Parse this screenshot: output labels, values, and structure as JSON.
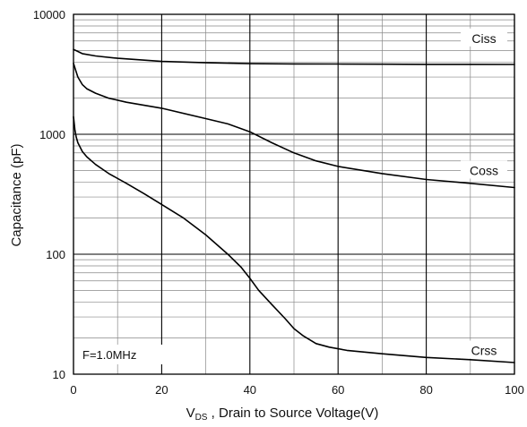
{
  "chart_data": {
    "type": "line",
    "title": "",
    "xlabel_main": "V",
    "xlabel_sub": "DS",
    "xlabel_rest": " , Drain to Source Voltage(V)",
    "ylabel": "Capacitance (pF)",
    "xlim": [
      0,
      100
    ],
    "ylim": [
      10,
      10000
    ],
    "yscale": "log",
    "grid": true,
    "x_ticks": [
      0,
      20,
      40,
      60,
      80,
      100
    ],
    "x_tick_labels": [
      "0",
      "20",
      "40",
      "60",
      "80",
      "100"
    ],
    "y_ticks": [
      10,
      100,
      1000,
      10000
    ],
    "y_tick_labels": [
      "10",
      "100",
      "1000",
      "10000"
    ],
    "annotation": "F=1.0MHz",
    "series": [
      {
        "name": "Ciss",
        "x": [
          0,
          1,
          2,
          5,
          10,
          20,
          30,
          40,
          50,
          60,
          70,
          80,
          90,
          100
        ],
        "y": [
          5100,
          4900,
          4700,
          4500,
          4300,
          4050,
          3950,
          3880,
          3860,
          3850,
          3840,
          3830,
          3830,
          3820
        ]
      },
      {
        "name": "Coss",
        "x": [
          0,
          0.5,
          1,
          2,
          3,
          5,
          8,
          12,
          20,
          30,
          35,
          40,
          45,
          50,
          55,
          60,
          70,
          80,
          90,
          100
        ],
        "y": [
          3900,
          3400,
          3000,
          2600,
          2400,
          2200,
          2000,
          1850,
          1650,
          1350,
          1220,
          1050,
          850,
          700,
          600,
          540,
          470,
          420,
          390,
          360
        ]
      },
      {
        "name": "Crss",
        "x": [
          0,
          0.3,
          0.6,
          1,
          2,
          3,
          5,
          8,
          12,
          16,
          20,
          25,
          30,
          35,
          38,
          40,
          42,
          45,
          48,
          50,
          52,
          55,
          58,
          62,
          70,
          80,
          90,
          100
        ],
        "y": [
          1400,
          1100,
          950,
          850,
          720,
          650,
          560,
          470,
          390,
          320,
          260,
          200,
          145,
          100,
          78,
          63,
          50,
          38,
          29,
          24,
          21,
          18,
          16.8,
          15.8,
          14.8,
          13.8,
          13.2,
          12.5
        ]
      }
    ]
  }
}
